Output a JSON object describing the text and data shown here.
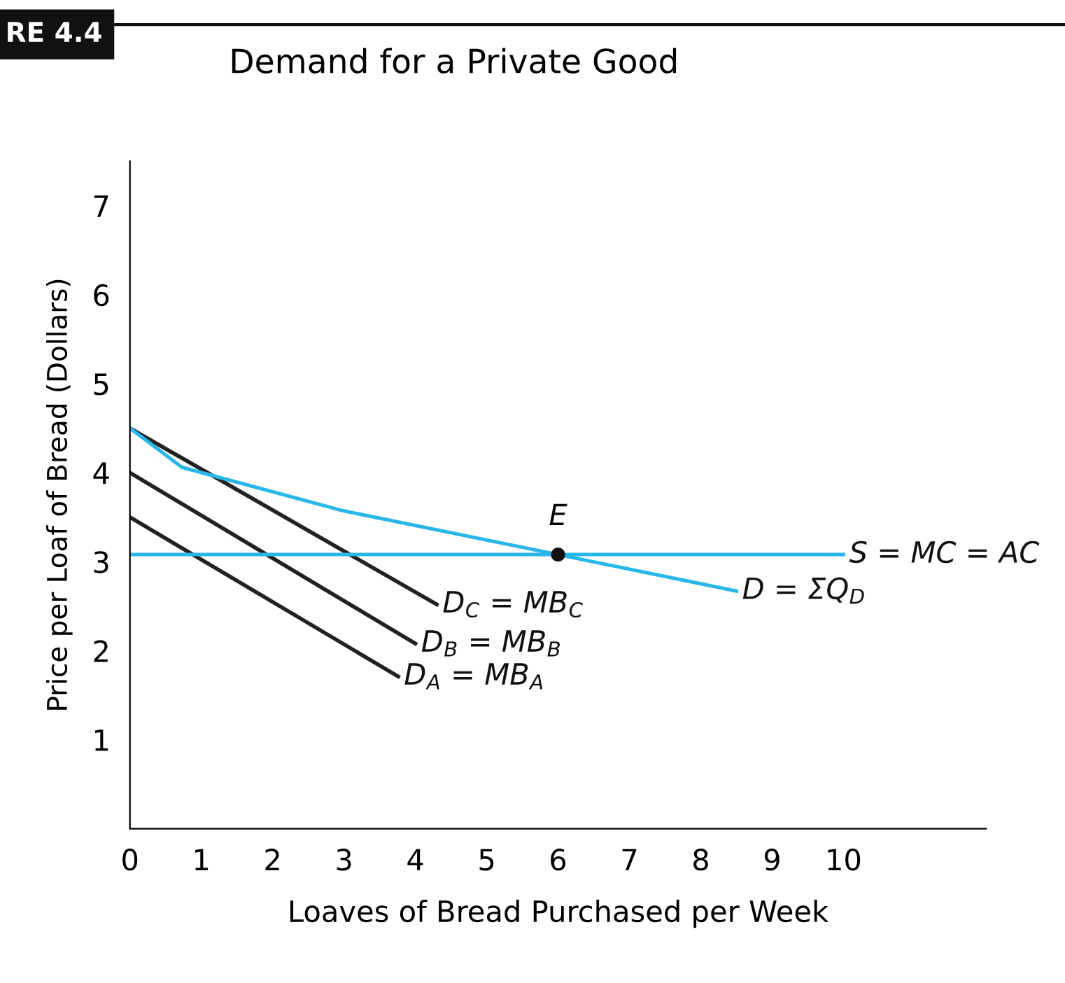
{
  "chart_data": {
    "type": "line",
    "title": "Demand for a Private Good",
    "xlabel": "Loaves of Bread Purchased per Week",
    "ylabel": "Price per Loaf of Bread (Dollars)",
    "series": [
      {
        "name": "D$_{C}$ = MB$_{C}$",
        "color": "#222222",
        "x": [
          0,
          4.3
        ],
        "values": [
          4.5,
          2.52
        ]
      },
      {
        "name": "D$_{B}$ = MB$_{B}$",
        "color": "#222222",
        "x": [
          0,
          4.0
        ],
        "values": [
          4.0,
          2.08
        ]
      },
      {
        "name": "D$_{A}$ = MB$_{A}$",
        "color": "#222222",
        "x": [
          0,
          3.76
        ],
        "values": [
          3.5,
          1.71
        ]
      },
      {
        "name": "D = ΣQ$_{D}$",
        "color": "#29b6e8",
        "x": [
          0,
          0.73,
          3,
          6,
          8.5
        ],
        "values": [
          4.5,
          4.06,
          3.57,
          3.08,
          2.67
        ]
      },
      {
        "name": "S = MC = AC",
        "color": "#29b6e8",
        "x": [
          0,
          10
        ],
        "values": [
          3.08,
          3.08
        ]
      },
      {
        "type": "scatter",
        "color": "#111111",
        "x": [
          6
        ],
        "values": [
          3.08
        ]
      }
    ],
    "annotations": [
      "RE 4.4",
      {
        "text": "E",
        "x": 6,
        "y": 3.08
      }
    ],
    "xlim": [
      0,
      12
    ],
    "ylim": [
      0,
      7.5
    ],
    "xticks": [
      0,
      1,
      2,
      3,
      4,
      5,
      6,
      7,
      8,
      9,
      10
    ],
    "yticks": [
      1,
      2,
      3,
      4,
      5,
      6,
      7
    ],
    "grid": false,
    "legend": false
  }
}
